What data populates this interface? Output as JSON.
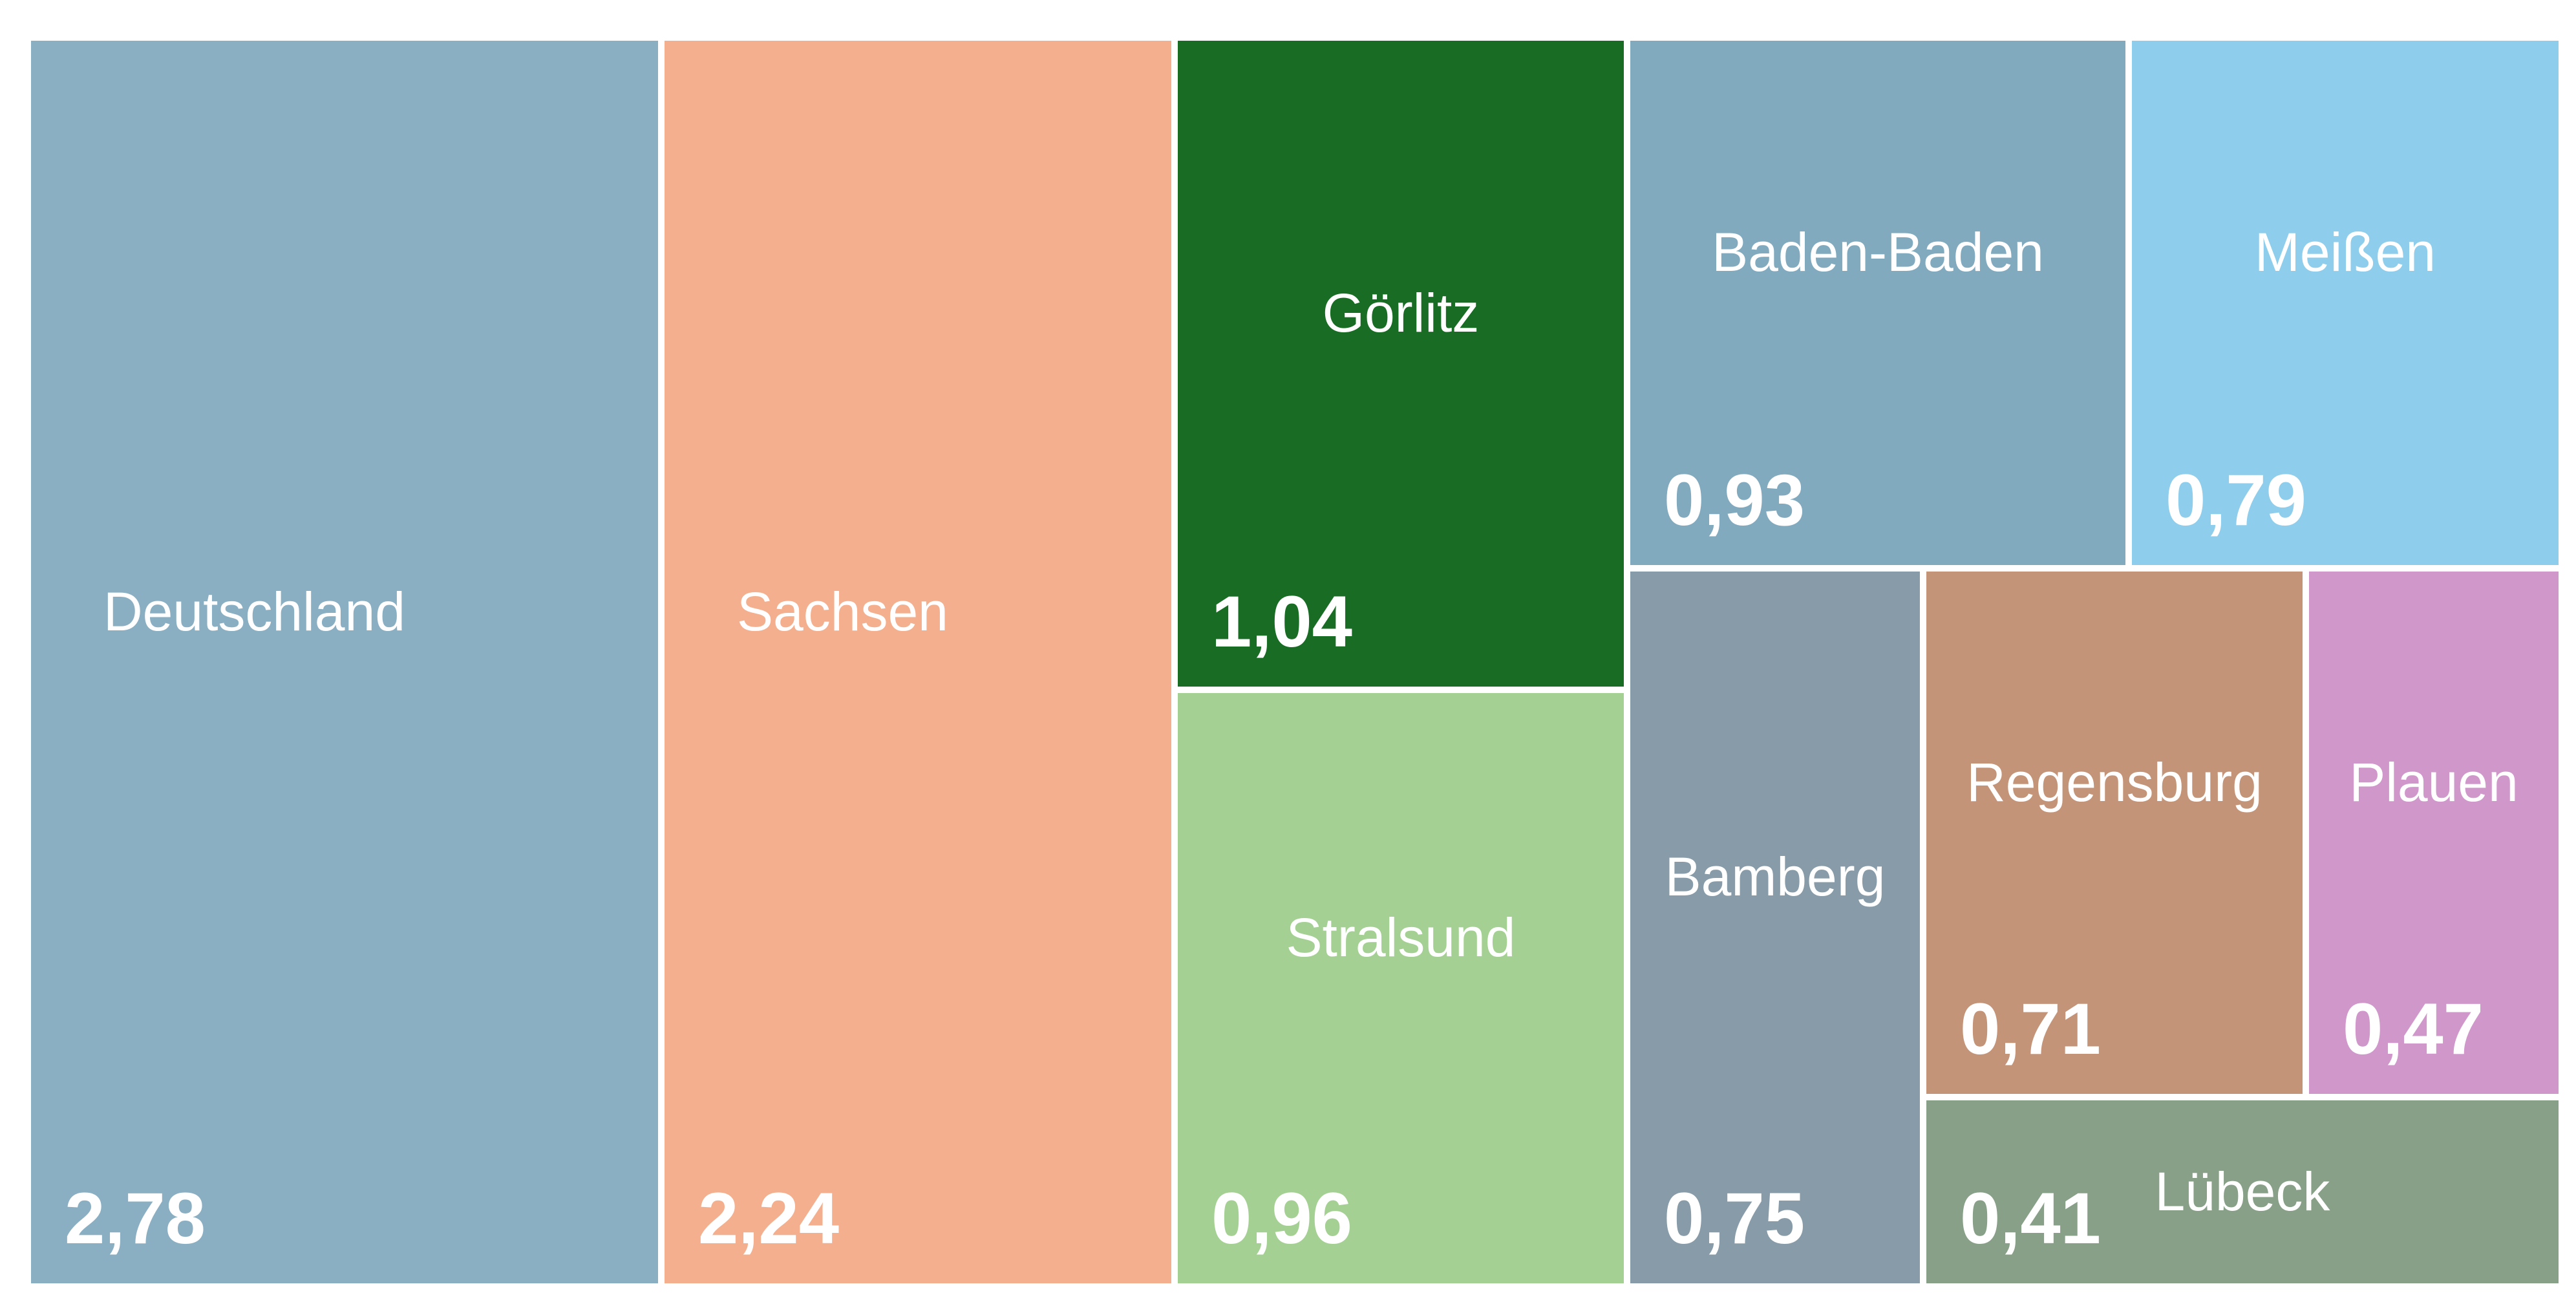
{
  "page": {
    "background": "#ffffff",
    "text_color": "#ffffff"
  },
  "chart_data": {
    "type": "treemap",
    "title": "",
    "legend": "none",
    "value_decimal_separator": ",",
    "total": 11.08,
    "items": [
      {
        "slug": "deutschland",
        "label": "Deutschland",
        "value": 2.78,
        "value_text": "2,78",
        "color": "#8aaec2",
        "name_align": "left",
        "variant": "block"
      },
      {
        "slug": "sachsen",
        "label": "Sachsen",
        "value": 2.24,
        "value_text": "2,24",
        "color": "#f4b08e",
        "name_align": "left",
        "variant": "block"
      },
      {
        "slug": "goerlitz",
        "label": "Görlitz",
        "value": 1.04,
        "value_text": "1,04",
        "color": "#186c24",
        "name_align": "center",
        "variant": "block"
      },
      {
        "slug": "stralsund",
        "label": "Stralsund",
        "value": 0.96,
        "value_text": "0,96",
        "color": "#a5d093",
        "name_align": "center",
        "variant": "block"
      },
      {
        "slug": "baden-baden",
        "label": "Baden-Baden",
        "value": 0.93,
        "value_text": "0,93",
        "color": "#82aabf",
        "name_align": "center",
        "variant": "block"
      },
      {
        "slug": "meissen",
        "label": "Meißen",
        "value": 0.79,
        "value_text": "0,79",
        "color": "#8ecdeb",
        "name_align": "center",
        "variant": "block"
      },
      {
        "slug": "bamberg",
        "label": "Bamberg",
        "value": 0.75,
        "value_text": "0,75",
        "color": "#879ba8",
        "name_align": "center",
        "variant": "block"
      },
      {
        "slug": "regensburg",
        "label": "Regensburg",
        "value": 0.71,
        "value_text": "0,71",
        "color": "#c49478",
        "name_align": "center",
        "variant": "block"
      },
      {
        "slug": "plauen",
        "label": "Plauen",
        "value": 0.47,
        "value_text": "0,47",
        "color": "#d097cb",
        "name_align": "center",
        "variant": "block"
      },
      {
        "slug": "luebeck",
        "label": "Lübeck",
        "value": 0.41,
        "value_text": "0,41",
        "color": "#89a088",
        "name_align": "center",
        "variant": "strip"
      }
    ],
    "layout_pct": {
      "deutschland": {
        "x": 1.204,
        "y": 3.097,
        "w": 24.341,
        "h": 94.494
      },
      "sachsen": {
        "x": 25.797,
        "y": 3.097,
        "w": 19.674,
        "h": 94.494
      },
      "goerlitz": {
        "x": 45.721,
        "y": 3.097,
        "w": 17.315,
        "h": 49.115
      },
      "stralsund": {
        "x": 45.721,
        "y": 52.704,
        "w": 17.315,
        "h": 44.887
      },
      "baden-baden": {
        "x": 63.288,
        "y": 3.097,
        "w": 19.222,
        "h": 39.872
      },
      "meissen": {
        "x": 82.76,
        "y": 3.097,
        "w": 16.562,
        "h": 39.872
      },
      "bamberg": {
        "x": 63.288,
        "y": 43.462,
        "w": 11.242,
        "h": 54.13
      },
      "regensburg": {
        "x": 74.78,
        "y": 43.462,
        "w": 14.605,
        "h": 39.725
      },
      "plauen": {
        "x": 89.636,
        "y": 43.462,
        "w": 9.686,
        "h": 39.725
      },
      "luebeck": {
        "x": 74.78,
        "y": 83.677,
        "w": 24.542,
        "h": 13.913
      }
    }
  }
}
